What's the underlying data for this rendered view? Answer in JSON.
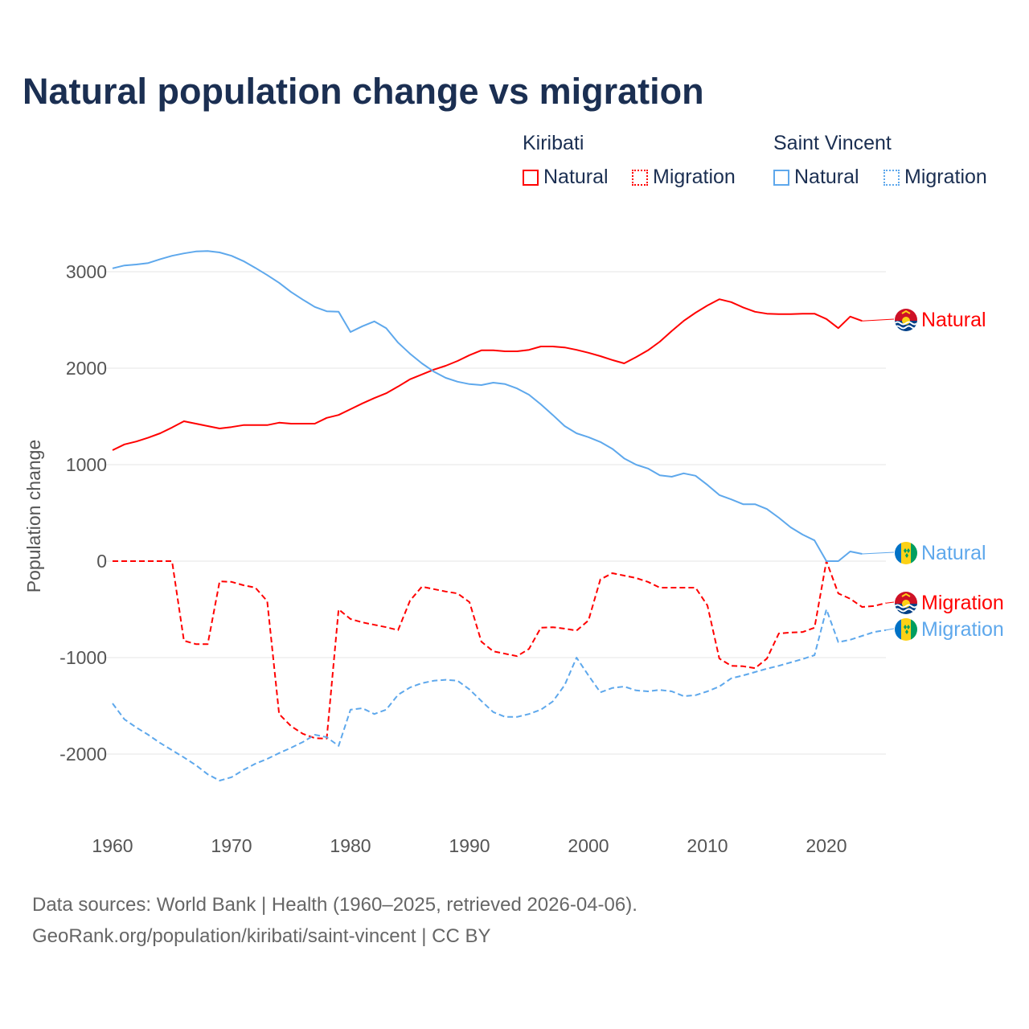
{
  "title": "Natural population change vs migration",
  "legend": {
    "groups": [
      {
        "name": "Kiribati",
        "color": "#ff0000",
        "items": [
          "Natural",
          "Migration"
        ]
      },
      {
        "name": "Saint Vincent",
        "color": "#5ea8ec",
        "items": [
          "Natural",
          "Migration"
        ]
      }
    ]
  },
  "footer": {
    "line1": "Data sources: World Bank | Health (1960–2025, retrieved 2026-04-06).",
    "line2": "GeoRank.org/population/kiribati/saint-vincent | CC BY"
  },
  "chart_data": {
    "type": "line",
    "title": "Natural population change vs migration",
    "xlabel": "",
    "ylabel": "Population change",
    "xlim": [
      1960,
      2025
    ],
    "ylim": [
      -2600,
      3300
    ],
    "xticks": [
      1960,
      1970,
      1980,
      1990,
      2000,
      2010,
      2020
    ],
    "yticks": [
      3000,
      2000,
      1000,
      0,
      -1000,
      -2000
    ],
    "grid": true,
    "series": [
      {
        "name": "Kiribati Natural",
        "label": "Natural",
        "country": "Kiribati",
        "color": "#ff0000",
        "dash": false,
        "start": 1960,
        "values": [
          1150,
          1210,
          1240,
          1280,
          1325,
          1385,
          1450,
          1425,
          1400,
          1375,
          1390,
          1410,
          1410,
          1410,
          1435,
          1425,
          1425,
          1425,
          1485,
          1515,
          1575,
          1635,
          1690,
          1740,
          1810,
          1885,
          1935,
          1985,
          2025,
          2075,
          2135,
          2185,
          2185,
          2175,
          2175,
          2190,
          2225,
          2225,
          2215,
          2190,
          2160,
          2125,
          2085,
          2050,
          2115,
          2185,
          2275,
          2385,
          2490,
          2575,
          2650,
          2715,
          2685,
          2630,
          2585,
          2565,
          2560,
          2560,
          2565,
          2565,
          2510,
          2415,
          2535,
          2490
        ]
      },
      {
        "name": "Kiribati Migration",
        "label": "Migration",
        "country": "Kiribati",
        "color": "#ff0000",
        "dash": true,
        "start": 1960,
        "values": [
          0,
          0,
          0,
          0,
          0,
          0,
          -825,
          -860,
          -860,
          -210,
          -215,
          -250,
          -275,
          -415,
          -1585,
          -1710,
          -1790,
          -1835,
          -1840,
          -500,
          -600,
          -635,
          -660,
          -685,
          -715,
          -410,
          -265,
          -290,
          -315,
          -335,
          -425,
          -835,
          -935,
          -960,
          -985,
          -910,
          -690,
          -685,
          -700,
          -720,
          -615,
          -190,
          -125,
          -150,
          -175,
          -215,
          -275,
          -275,
          -275,
          -275,
          -460,
          -1010,
          -1085,
          -1090,
          -1110,
          -1010,
          -750,
          -740,
          -735,
          -690,
          0,
          -335,
          -390,
          -475,
          -465,
          -435
        ]
      },
      {
        "name": "Saint Vincent Natural",
        "label": "Natural",
        "country": "Saint Vincent",
        "color": "#5ea8ec",
        "dash": false,
        "start": 1960,
        "values": [
          3035,
          3065,
          3075,
          3090,
          3130,
          3165,
          3190,
          3210,
          3215,
          3200,
          3165,
          3110,
          3040,
          2965,
          2885,
          2790,
          2710,
          2635,
          2590,
          2585,
          2375,
          2435,
          2485,
          2415,
          2265,
          2150,
          2050,
          1965,
          1900,
          1860,
          1835,
          1825,
          1850,
          1835,
          1790,
          1725,
          1625,
          1515,
          1400,
          1325,
          1285,
          1235,
          1165,
          1065,
          1000,
          960,
          890,
          875,
          910,
          885,
          790,
          685,
          640,
          590,
          590,
          540,
          450,
          350,
          275,
          215,
          0,
          0,
          100,
          75
        ]
      },
      {
        "name": "Saint Vincent Migration",
        "label": "Migration",
        "country": "Saint Vincent",
        "color": "#5ea8ec",
        "dash": true,
        "start": 1960,
        "values": [
          -1475,
          -1640,
          -1725,
          -1800,
          -1885,
          -1960,
          -2035,
          -2115,
          -2210,
          -2275,
          -2240,
          -2165,
          -2100,
          -2050,
          -1990,
          -1935,
          -1875,
          -1800,
          -1825,
          -1915,
          -1540,
          -1525,
          -1585,
          -1540,
          -1385,
          -1310,
          -1265,
          -1240,
          -1230,
          -1240,
          -1330,
          -1450,
          -1565,
          -1615,
          -1615,
          -1585,
          -1540,
          -1455,
          -1285,
          -1000,
          -1185,
          -1360,
          -1315,
          -1300,
          -1340,
          -1350,
          -1335,
          -1350,
          -1400,
          -1390,
          -1350,
          -1300,
          -1215,
          -1185,
          -1150,
          -1115,
          -1085,
          -1050,
          -1015,
          -975,
          -500,
          -840,
          -815,
          -775,
          -735,
          -715
        ]
      }
    ]
  }
}
